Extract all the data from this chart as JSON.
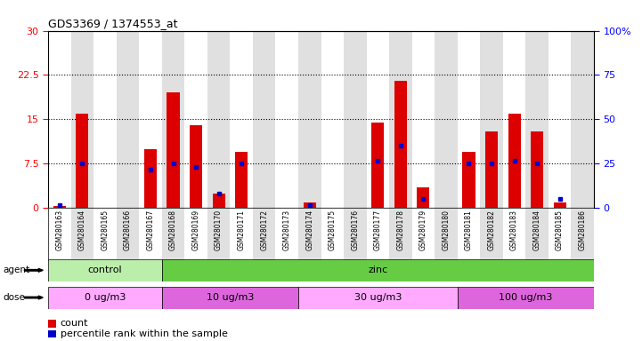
{
  "title": "GDS3369 / 1374553_at",
  "samples": [
    "GSM280163",
    "GSM280164",
    "GSM280165",
    "GSM280166",
    "GSM280167",
    "GSM280168",
    "GSM280169",
    "GSM280170",
    "GSM280171",
    "GSM280172",
    "GSM280173",
    "GSM280174",
    "GSM280175",
    "GSM280176",
    "GSM280177",
    "GSM280178",
    "GSM280179",
    "GSM280180",
    "GSM280181",
    "GSM280182",
    "GSM280183",
    "GSM280184",
    "GSM280185",
    "GSM280186"
  ],
  "counts": [
    0.3,
    16.0,
    0.0,
    0.0,
    10.0,
    19.5,
    14.0,
    2.5,
    9.5,
    0.0,
    0.0,
    1.0,
    0.0,
    0.0,
    14.5,
    21.5,
    3.5,
    0.0,
    9.5,
    13.0,
    16.0,
    13.0,
    1.0,
    0.0
  ],
  "percentile_ranks_left": [
    0.5,
    7.5,
    0.0,
    0.0,
    6.5,
    7.5,
    7.0,
    2.5,
    7.5,
    0.0,
    0.0,
    0.5,
    0.0,
    0.0,
    8.0,
    10.5,
    1.5,
    0.0,
    7.5,
    7.5,
    8.0,
    7.5,
    1.5,
    0.0
  ],
  "ylim_left": [
    0,
    30
  ],
  "ylim_right": [
    0,
    100
  ],
  "yticks_left": [
    0,
    7.5,
    15,
    22.5,
    30
  ],
  "ytick_labels_left": [
    "0",
    "7.5",
    "15",
    "22.5",
    "30"
  ],
  "yticks_right": [
    0,
    25,
    50,
    75,
    100
  ],
  "ytick_labels_right": [
    "0",
    "25",
    "50",
    "75",
    "100%"
  ],
  "bar_color": "#dd0000",
  "dot_color": "#0000cc",
  "col_colors": [
    "#ffffff",
    "#e0e0e0"
  ],
  "agent_groups": [
    {
      "label": "control",
      "start": 0,
      "end": 5,
      "color": "#bbeeaa"
    },
    {
      "label": "zinc",
      "start": 5,
      "end": 24,
      "color": "#66cc44"
    }
  ],
  "dose_groups": [
    {
      "label": "0 ug/m3",
      "start": 0,
      "end": 5,
      "color": "#ffaaff"
    },
    {
      "label": "10 ug/m3",
      "start": 5,
      "end": 11,
      "color": "#dd66dd"
    },
    {
      "label": "30 ug/m3",
      "start": 11,
      "end": 18,
      "color": "#ffaaff"
    },
    {
      "label": "100 ug/m3",
      "start": 18,
      "end": 24,
      "color": "#dd66dd"
    }
  ],
  "legend_count_label": "count",
  "legend_pct_label": "percentile rank within the sample",
  "bg_white": "#ffffff",
  "bg_grey": "#e0e0e0",
  "plot_bg": "#ffffff"
}
